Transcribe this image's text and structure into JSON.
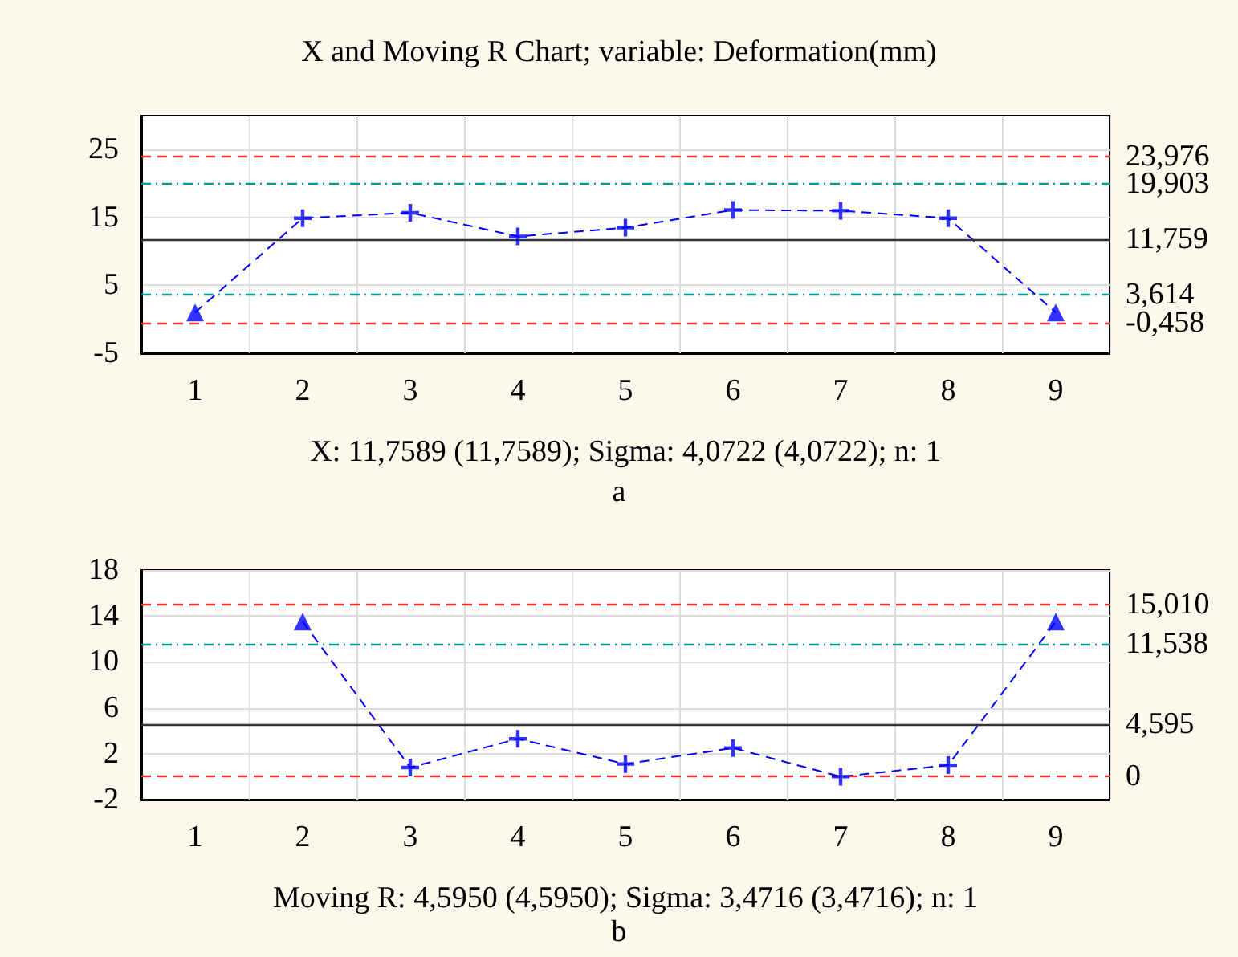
{
  "chart_data": [
    {
      "type": "line",
      "title": "X and Moving R Chart; variable: Deformation(mm)",
      "xlabel": "X: 11,7589 (11,7589); Sigma: 4,0722 (4,0722); n: 1",
      "annotations": [
        "a"
      ],
      "categories": [
        "1",
        "2",
        "3",
        "4",
        "5",
        "6",
        "7",
        "8",
        "9"
      ],
      "series": [
        {
          "type": "line",
          "color": "#0000ff",
          "marker": "none",
          "line_style": "dashed",
          "values": [
            1,
            14.9,
            15.7,
            12.2,
            13.5,
            16.1,
            16,
            14.9,
            1
          ]
        },
        {
          "type": "scatter",
          "color": "#0000ff",
          "marker": "cross",
          "values": [
            null,
            14.9,
            15.7,
            12.2,
            13.5,
            16.1,
            16,
            14.9,
            null
          ]
        },
        {
          "type": "scatter",
          "color": "#0000ff",
          "marker": "triangle",
          "values": [
            1,
            null,
            null,
            null,
            null,
            null,
            null,
            null,
            1
          ]
        }
      ],
      "ylim": [
        -5,
        30
      ],
      "yticks": [
        -5,
        5,
        15,
        25
      ],
      "grid": true,
      "ref_lines": [
        {
          "axis": "y",
          "value": 23.976,
          "label": "23,976",
          "color": "#ff3333",
          "line_style": "dashed"
        },
        {
          "axis": "y",
          "value": 19.903,
          "label": "19,903",
          "color": "#009999",
          "line_style": "dotted"
        },
        {
          "axis": "y",
          "value": 11.759,
          "label": "11,759",
          "color": "#333333",
          "line_style": "solid"
        },
        {
          "axis": "y",
          "value": 3.614,
          "label": "3,614",
          "color": "#009999",
          "line_style": "dotted"
        },
        {
          "axis": "y",
          "value": -0.458,
          "label": "-0,458",
          "color": "#ff3333",
          "line_style": "dashed"
        }
      ]
    },
    {
      "type": "line",
      "xlabel": "Moving R: 4,5950 (4,5950); Sigma: 3,4716 (3,4716); n: 1",
      "annotations": [
        "b"
      ],
      "categories": [
        "1",
        "2",
        "3",
        "4",
        "5",
        "6",
        "7",
        "8",
        "9"
      ],
      "series": [
        {
          "type": "line",
          "color": "#0000ff",
          "marker": "none",
          "line_style": "dashed",
          "values": [
            null,
            13.5,
            0.8,
            3.3,
            1.1,
            2.5,
            0.0,
            1.0,
            13.5
          ]
        },
        {
          "type": "scatter",
          "color": "#0000ff",
          "marker": "cross",
          "values": [
            null,
            null,
            0.8,
            3.3,
            1.1,
            2.5,
            0.0,
            1.0,
            null
          ]
        },
        {
          "type": "scatter",
          "color": "#0000ff",
          "marker": "triangle",
          "values": [
            null,
            13.5,
            null,
            null,
            null,
            null,
            null,
            null,
            13.5
          ]
        }
      ],
      "ylim": [
        -2,
        18
      ],
      "yticks": [
        -2,
        2,
        6,
        10,
        14,
        18
      ],
      "grid": true,
      "ref_lines": [
        {
          "axis": "y",
          "value": 15.01,
          "label": "15,010",
          "color": "#ff3333",
          "line_style": "dashed"
        },
        {
          "axis": "y",
          "value": 11.538,
          "label": "11,538",
          "color": "#009999",
          "line_style": "dotted"
        },
        {
          "axis": "y",
          "value": 4.595,
          "label": "4,595",
          "color": "#333333",
          "line_style": "solid"
        },
        {
          "axis": "y",
          "value": 0,
          "label": "0",
          "color": "#ff3333",
          "line_style": "dashed"
        }
      ]
    }
  ]
}
